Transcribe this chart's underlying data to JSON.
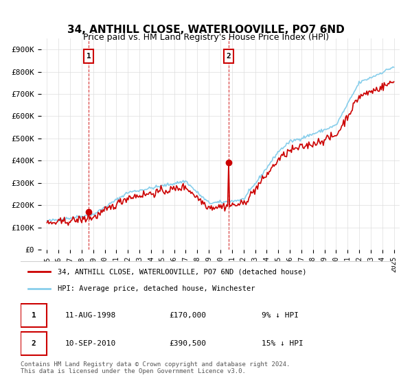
{
  "title": "34, ANTHILL CLOSE, WATERLOOVILLE, PO7 6ND",
  "subtitle": "Price paid vs. HM Land Registry's House Price Index (HPI)",
  "ylabel": "",
  "xlabel": "",
  "ylim": [
    0,
    950000
  ],
  "yticks": [
    0,
    100000,
    200000,
    300000,
    400000,
    500000,
    600000,
    700000,
    800000,
    900000
  ],
  "ytick_labels": [
    "£0",
    "£100K",
    "£200K",
    "£300K",
    "£400K",
    "£500K",
    "£600K",
    "£700K",
    "£800K",
    "£900K"
  ],
  "xtick_years": [
    "1995",
    "1996",
    "1997",
    "1998",
    "1999",
    "2000",
    "2001",
    "2002",
    "2003",
    "2004",
    "2005",
    "2006",
    "2007",
    "2008",
    "2009",
    "2010",
    "2011",
    "2012",
    "2013",
    "2014",
    "2015",
    "2016",
    "2017",
    "2018",
    "2019",
    "2020",
    "2021",
    "2022",
    "2023",
    "2024",
    "2025"
  ],
  "hpi_color": "#87CEEB",
  "price_color": "#CC0000",
  "marker_color": "#CC0000",
  "marker_border": "#CC0000",
  "transaction1": {
    "year": 1998.6,
    "price": 170000,
    "label": "1",
    "date": "11-AUG-1998",
    "pct": "9%",
    "dir": "↓"
  },
  "transaction2": {
    "year": 2010.7,
    "price": 390500,
    "label": "2",
    "date": "10-SEP-2010",
    "pct": "15%",
    "dir": "↓"
  },
  "legend_label_red": "34, ANTHILL CLOSE, WATERLOOVILLE, PO7 6ND (detached house)",
  "legend_label_blue": "HPI: Average price, detached house, Winchester",
  "footer": "Contains HM Land Registry data © Crown copyright and database right 2024.\nThis data is licensed under the Open Government Licence v3.0.",
  "background_color": "#ffffff",
  "grid_color": "#dddddd"
}
